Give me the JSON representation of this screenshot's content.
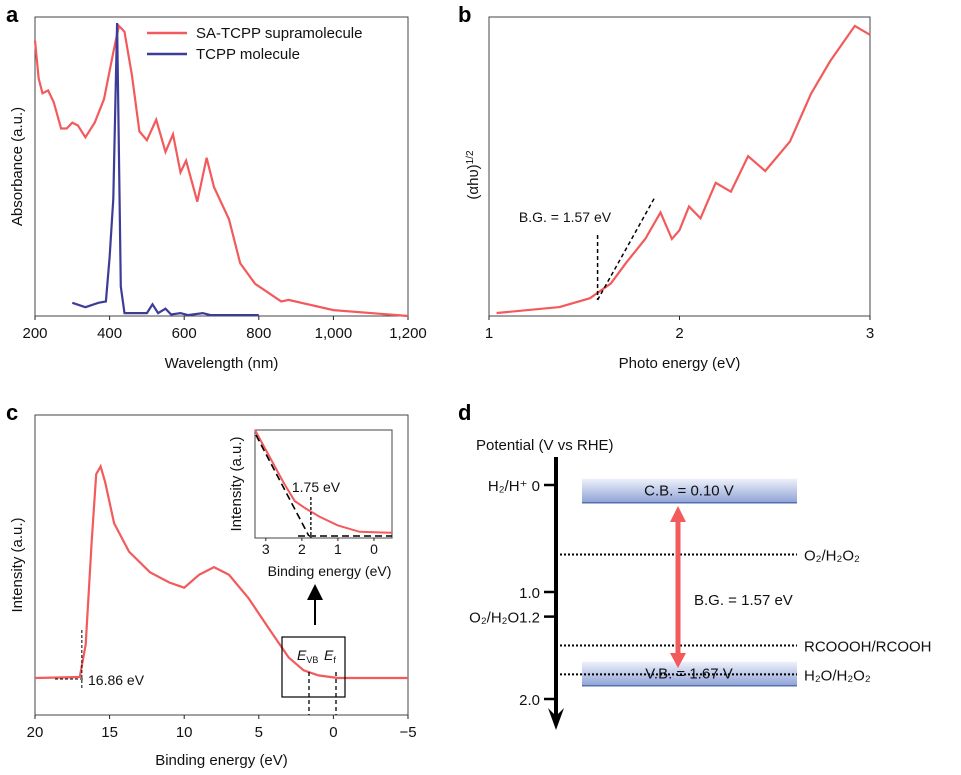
{
  "colors": {
    "red": "#f25a5c",
    "blue": "#3d3d99",
    "band": "#8fa3d6"
  },
  "chart_data": [
    {
      "panel": "a",
      "type": "line",
      "xlabel": "Wavelength (nm)",
      "ylabel": "Absorbance (a.u.)",
      "xlim": [
        200,
        1200
      ],
      "ylim": [
        0,
        1
      ],
      "xticks": [
        200,
        400,
        600,
        800,
        1000,
        1200
      ],
      "xtick_labels": [
        "200",
        "400",
        "600",
        "800",
        "1,000",
        "1,200"
      ],
      "legend": "top-right",
      "series": [
        {
          "name": "SA-TCPP supramolecule",
          "color": "#f25a5c",
          "x": [
            200,
            210,
            220,
            235,
            250,
            270,
            285,
            300,
            315,
            335,
            360,
            385,
            410,
            425,
            440,
            460,
            480,
            500,
            525,
            550,
            570,
            590,
            605,
            635,
            660,
            680,
            720,
            750,
            790,
            860,
            880,
            1000,
            1200
          ],
          "y": [
            0.94,
            0.81,
            0.76,
            0.77,
            0.73,
            0.64,
            0.64,
            0.66,
            0.65,
            0.61,
            0.66,
            0.74,
            0.9,
            0.99,
            0.97,
            0.82,
            0.63,
            0.6,
            0.67,
            0.56,
            0.62,
            0.49,
            0.53,
            0.39,
            0.54,
            0.44,
            0.33,
            0.18,
            0.11,
            0.05,
            0.055,
            0.02,
            0
          ]
        },
        {
          "name": "TCPP molecule",
          "color": "#3d3d99",
          "x": [
            300,
            335,
            370,
            390,
            400,
            410,
            420,
            430,
            440,
            500,
            515,
            530,
            550,
            565,
            590,
            610,
            650,
            670,
            800
          ],
          "y": [
            0.045,
            0.03,
            0.045,
            0.05,
            0.2,
            0.4,
            1.0,
            0.1,
            0.01,
            0.01,
            0.04,
            0.01,
            0.025,
            0.005,
            0.01,
            0.003,
            0.01,
            0.003,
            0.003
          ]
        }
      ]
    },
    {
      "panel": "b",
      "type": "line",
      "xlabel": "Photo energy (eV)",
      "ylabel": "(αhυ)",
      "ylabel_sup": "1/2",
      "xlim": [
        1,
        3
      ],
      "ylim": [
        0,
        1
      ],
      "xticks": [
        1,
        2,
        3
      ],
      "annotation": "B.G. = 1.57 eV",
      "band_gap": 1.57,
      "series": [
        {
          "color": "#f25a5c",
          "x": [
            1.04,
            1.37,
            1.53,
            1.64,
            1.72,
            1.82,
            1.9,
            1.96,
            2.0,
            2.05,
            2.11,
            2.19,
            2.27,
            2.36,
            2.45,
            2.58,
            2.69,
            2.79,
            2.92,
            3.0
          ],
          "y": [
            0.01,
            0.03,
            0.06,
            0.11,
            0.18,
            0.26,
            0.35,
            0.26,
            0.29,
            0.37,
            0.33,
            0.45,
            0.42,
            0.54,
            0.49,
            0.59,
            0.75,
            0.86,
            0.98,
            0.95
          ]
        }
      ]
    },
    {
      "panel": "c",
      "type": "line",
      "xlabel": "Binding energy (eV)",
      "ylabel": "Intensity (a.u.)",
      "xlim": [
        20,
        -5
      ],
      "ylim": [
        0,
        1
      ],
      "xticks": [
        20,
        15,
        10,
        5,
        0,
        -5
      ],
      "annotation": "16.86 eV",
      "cutoff": 16.86,
      "labels": {
        "evb": "E",
        "evb_sub": "VB",
        "ef": "E",
        "ef_sub": "f"
      },
      "series": [
        {
          "color": "#f25a5c",
          "x": [
            20,
            17,
            16.6,
            16.2,
            15.9,
            15.6,
            15.3,
            14.7,
            13.7,
            12.3,
            11,
            10,
            9,
            8,
            7,
            5.7,
            4.3,
            3,
            2,
            1,
            -0.3,
            -5
          ],
          "y": [
            0,
            0.004,
            0.13,
            0.53,
            0.79,
            0.82,
            0.76,
            0.6,
            0.49,
            0.41,
            0.37,
            0.35,
            0.4,
            0.43,
            0.4,
            0.31,
            0.19,
            0.08,
            0.03,
            0.01,
            0,
            0
          ]
        }
      ],
      "inset": {
        "xlabel": "Binding energy (eV)",
        "ylabel": "Intensity (a.u.)",
        "xlim": [
          3.3,
          -0.5
        ],
        "xticks": [
          3,
          2,
          1,
          0
        ],
        "annotation": "1.75 eV",
        "vbm": 1.75,
        "x": [
          3.3,
          2.9,
          2.5,
          2.2,
          1.9,
          1.5,
          1.0,
          0.4,
          -0.5
        ],
        "y": [
          1,
          0.75,
          0.5,
          0.33,
          0.26,
          0.18,
          0.1,
          0.04,
          0.03
        ]
      }
    },
    {
      "panel": "d",
      "type": "diagram",
      "ylabel": "Potential (V vs RHE)",
      "ylim": [
        -0.3,
        2.3
      ],
      "ticks": [
        {
          "v": 0,
          "label": "H₂/H⁺ 0"
        },
        {
          "v": 1.0,
          "label": "1.0"
        },
        {
          "v": 1.23,
          "label": "O₂/H₂O1.2"
        },
        {
          "v": 2.0,
          "label": "2.0"
        }
      ],
      "cb": {
        "value": 0.1,
        "label": "C.B. = 0.10 V"
      },
      "vb": {
        "value": 1.67,
        "label": "V.B. = 1.67 V"
      },
      "bg_label": "B.G. = 1.57 eV",
      "levels": [
        {
          "v": 0.65,
          "label": "O₂/H₂O₂"
        },
        {
          "v": 1.5,
          "label": "RCOOOH/RCOOH"
        },
        {
          "v": 1.77,
          "label": "H₂O/H₂O₂"
        }
      ]
    }
  ],
  "panel_labels": [
    "a",
    "b",
    "c",
    "d"
  ]
}
